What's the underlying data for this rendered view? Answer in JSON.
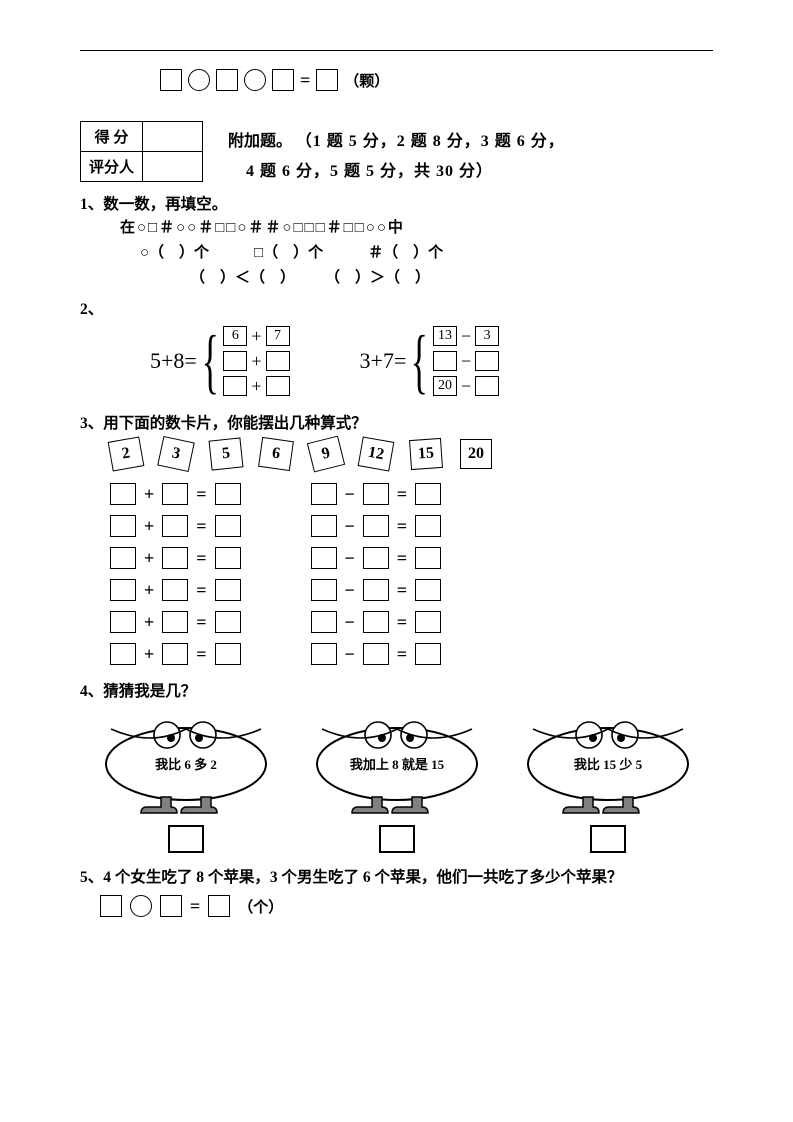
{
  "top_equation": {
    "unit": "（颗）"
  },
  "score_box": {
    "row1": "得  分",
    "row2": "评分人"
  },
  "bonus": {
    "title": "附加题。",
    "line1": "（1 题 5 分，2 题 8 分，3 题 6 分，",
    "line2": "4 题 6 分，5 题 5 分，共 30 分）"
  },
  "q1": {
    "heading": "1、数一数，再填空。",
    "symbols": "在○□＃○○＃□□○＃＃○□□□＃□□○○中",
    "counts": "○（　）个　　　□（　）个　　　＃（　）个",
    "compare": "（　）＜（　）　　　（　）＞（　）"
  },
  "q2": {
    "heading": "2、",
    "left": {
      "lhs": "5+8=",
      "rows": [
        {
          "a": "6",
          "op": "+",
          "b": "7"
        },
        {
          "a": "",
          "op": "+",
          "b": ""
        },
        {
          "a": "",
          "op": "+",
          "b": ""
        }
      ]
    },
    "right": {
      "lhs": "3+7=",
      "rows": [
        {
          "a": "13",
          "op": "−",
          "b": "3"
        },
        {
          "a": "",
          "op": "−",
          "b": ""
        },
        {
          "a": "20",
          "op": "−",
          "b": ""
        }
      ]
    }
  },
  "q3": {
    "heading": "3、用下面的数卡片，你能摆出几种算式？",
    "cards": [
      "2",
      "3",
      "5",
      "6",
      "9",
      "12",
      "15",
      "20"
    ],
    "rotations": [
      -10,
      12,
      -6,
      8,
      -14,
      10,
      -4,
      0
    ],
    "left_op": "+",
    "right_op": "−",
    "rows": 6
  },
  "q4": {
    "heading": "4、猜猜我是几？",
    "creatures": [
      {
        "text": "我比 6 多 2"
      },
      {
        "text": "我加上 8 就是 15"
      },
      {
        "text": "我比 15 少 5"
      }
    ]
  },
  "q5": {
    "heading": "5、4 个女生吃了 8 个苹果，3 个男生吃了 6 个苹果，他们一共吃了多少个苹果？",
    "unit": "（个）"
  }
}
